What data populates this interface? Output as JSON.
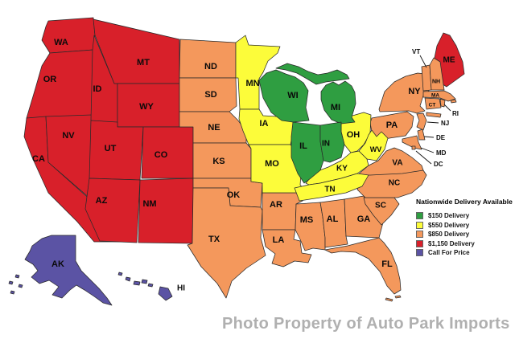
{
  "legend": {
    "title": "Nationwide Delivery Available",
    "items": [
      {
        "label": "$150 Delivery",
        "zone": "green"
      },
      {
        "label": "$550 Delivery",
        "zone": "yellow"
      },
      {
        "label": "$850 Delivery",
        "zone": "orange"
      },
      {
        "label": "$1,150 Delivery",
        "zone": "red"
      },
      {
        "label": "Call For Price",
        "zone": "purple"
      }
    ]
  },
  "zone_colors": {
    "green": "#2F9E41",
    "yellow": "#FCFC3A",
    "orange": "#F4985C",
    "red": "#D8202A",
    "purple": "#5B53A4"
  },
  "watermark": {
    "text": "Photo Property of Auto Park Imports"
  },
  "states": [
    {
      "code": "WA",
      "zone": "red"
    },
    {
      "code": "OR",
      "zone": "red"
    },
    {
      "code": "CA",
      "zone": "red"
    },
    {
      "code": "NV",
      "zone": "red"
    },
    {
      "code": "ID",
      "zone": "red"
    },
    {
      "code": "MT",
      "zone": "red"
    },
    {
      "code": "WY",
      "zone": "red"
    },
    {
      "code": "UT",
      "zone": "red"
    },
    {
      "code": "CO",
      "zone": "red"
    },
    {
      "code": "AZ",
      "zone": "red"
    },
    {
      "code": "NM",
      "zone": "red"
    },
    {
      "code": "ME",
      "zone": "red"
    },
    {
      "code": "ND",
      "zone": "orange"
    },
    {
      "code": "SD",
      "zone": "orange"
    },
    {
      "code": "NE",
      "zone": "orange"
    },
    {
      "code": "KS",
      "zone": "orange"
    },
    {
      "code": "OK",
      "zone": "orange"
    },
    {
      "code": "TX",
      "zone": "orange"
    },
    {
      "code": "AR",
      "zone": "orange"
    },
    {
      "code": "LA",
      "zone": "orange"
    },
    {
      "code": "MS",
      "zone": "orange"
    },
    {
      "code": "AL",
      "zone": "orange"
    },
    {
      "code": "GA",
      "zone": "orange"
    },
    {
      "code": "FL",
      "zone": "orange"
    },
    {
      "code": "SC",
      "zone": "orange"
    },
    {
      "code": "NC",
      "zone": "orange"
    },
    {
      "code": "VA",
      "zone": "orange"
    },
    {
      "code": "PA",
      "zone": "orange"
    },
    {
      "code": "NY",
      "zone": "orange"
    },
    {
      "code": "NJ",
      "zone": "orange"
    },
    {
      "code": "DE",
      "zone": "orange"
    },
    {
      "code": "MD",
      "zone": "orange"
    },
    {
      "code": "DC",
      "zone": "orange"
    },
    {
      "code": "VT",
      "zone": "orange"
    },
    {
      "code": "NH",
      "zone": "orange"
    },
    {
      "code": "MA",
      "zone": "orange"
    },
    {
      "code": "CT",
      "zone": "orange"
    },
    {
      "code": "RI",
      "zone": "orange"
    },
    {
      "code": "MN",
      "zone": "yellow"
    },
    {
      "code": "IA",
      "zone": "yellow"
    },
    {
      "code": "MO",
      "zone": "yellow"
    },
    {
      "code": "OH",
      "zone": "yellow"
    },
    {
      "code": "WV",
      "zone": "yellow"
    },
    {
      "code": "KY",
      "zone": "yellow"
    },
    {
      "code": "TN",
      "zone": "yellow"
    },
    {
      "code": "WI",
      "zone": "green"
    },
    {
      "code": "MI",
      "zone": "green"
    },
    {
      "code": "IL",
      "zone": "green"
    },
    {
      "code": "IN",
      "zone": "green"
    },
    {
      "code": "AK",
      "zone": "purple"
    },
    {
      "code": "HI",
      "zone": "purple"
    }
  ]
}
